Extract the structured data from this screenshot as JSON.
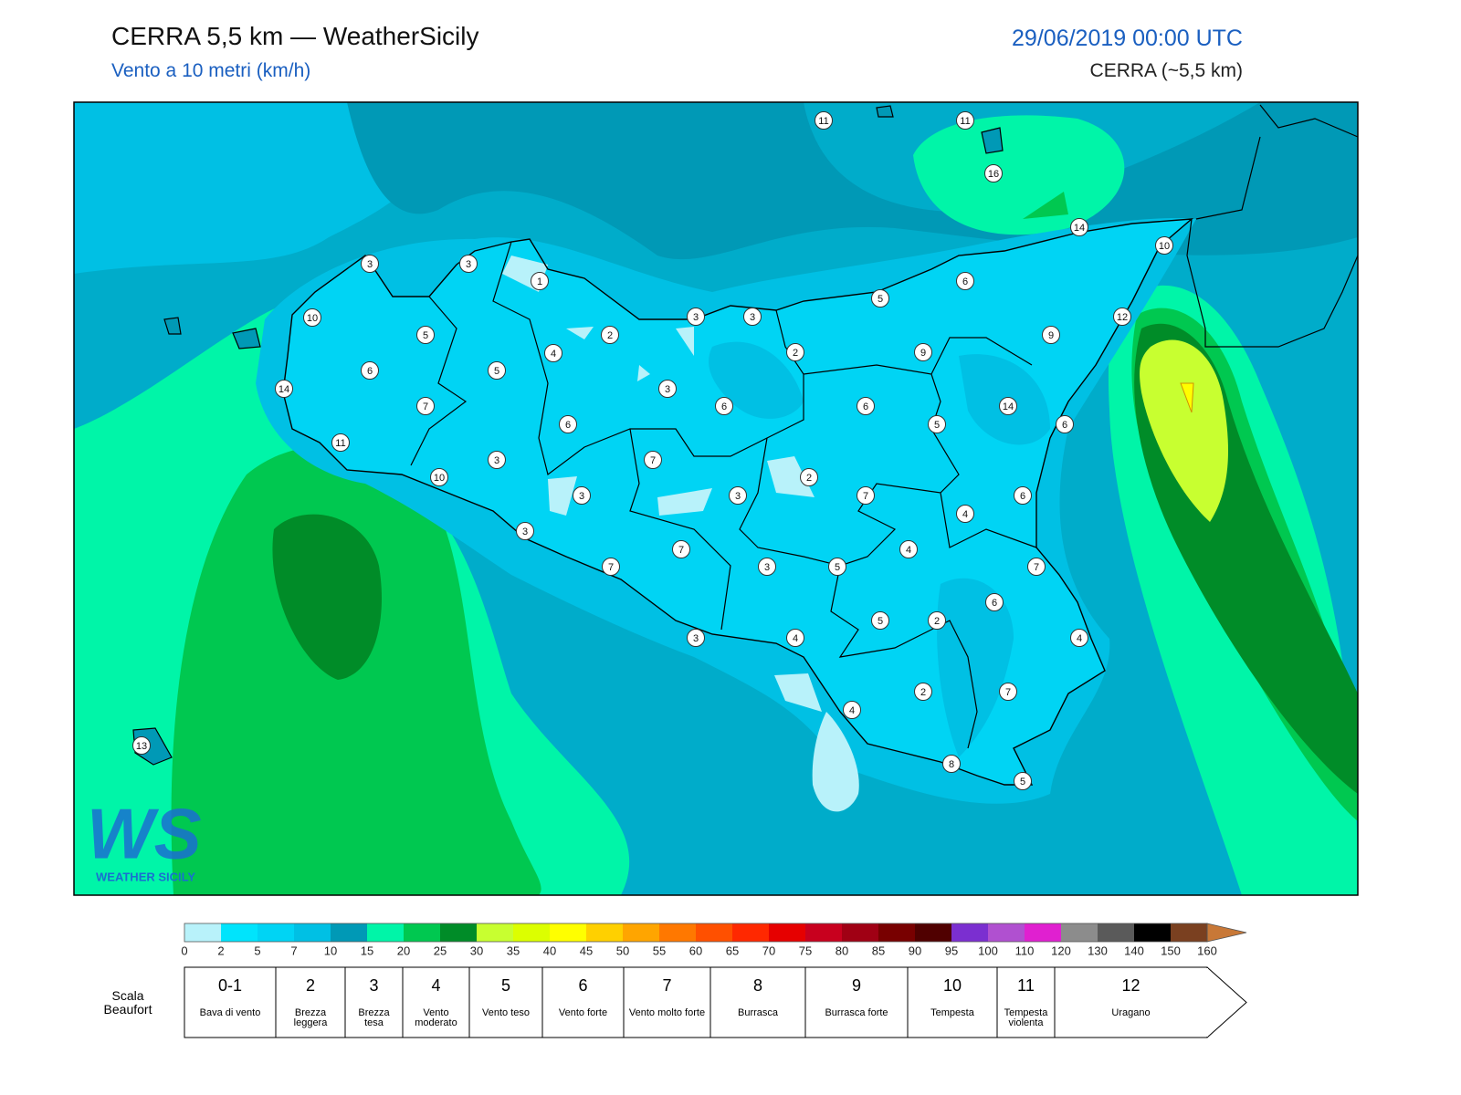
{
  "header": {
    "title": "CERRA 5,5 km — WeatherSicily",
    "subtitle": "Vento a 10 metri (km/h)",
    "date": "29/06/2019 00:00 UTC",
    "model": "CERRA (~5,5 km)"
  },
  "stations": [
    11,
    11,
    16,
    14,
    10,
    3,
    3,
    1,
    6,
    5,
    10,
    3,
    3,
    12,
    5,
    2,
    2,
    9,
    9,
    4,
    6,
    5,
    14,
    3,
    7,
    6,
    6,
    14,
    6,
    5,
    6,
    11,
    7,
    3,
    10,
    2,
    3,
    3,
    7,
    6,
    4,
    3,
    7,
    4,
    7,
    3,
    5,
    7,
    6,
    5,
    2,
    3,
    4,
    4,
    2,
    7,
    4,
    8,
    5,
    13
  ],
  "logo": {
    "mark": "WS",
    "text": "WEATHER SICILY"
  },
  "colorbar": {
    "ticks": [
      0,
      2,
      5,
      7,
      10,
      15,
      20,
      25,
      30,
      35,
      40,
      45,
      50,
      55,
      60,
      65,
      70,
      75,
      80,
      85,
      90,
      95,
      100,
      110,
      120,
      130,
      140,
      150,
      160
    ],
    "colors": [
      "#b8f2fa",
      "#00e4fc",
      "#00d4f4",
      "#00c0e4",
      "#0099b6",
      "#00f5a8",
      "#00c850",
      "#008c28",
      "#c8ff30",
      "#dcff00",
      "#ffff00",
      "#ffd000",
      "#ffa500",
      "#ff7800",
      "#ff5000",
      "#ff2800",
      "#e60000",
      "#c8001e",
      "#a00014",
      "#780000",
      "#500000",
      "#7b2fd0",
      "#b050d0",
      "#e020d0",
      "#8c8c8c",
      "#5a5a5a",
      "#000000",
      "#7a4020",
      "#c87837"
    ]
  },
  "beaufort": {
    "title": "Scala Beaufort",
    "levels": [
      {
        "force": "0-1",
        "name": "Bava di vento"
      },
      {
        "force": 2,
        "name": "Brezza leggera"
      },
      {
        "force": 3,
        "name": "Brezza tesa"
      },
      {
        "force": 4,
        "name": "Vento moderato"
      },
      {
        "force": 5,
        "name": "Vento teso"
      },
      {
        "force": 6,
        "name": "Vento forte"
      },
      {
        "force": 7,
        "name": "Vento molto forte"
      },
      {
        "force": 8,
        "name": "Burrasca"
      },
      {
        "force": 9,
        "name": "Burrasca forte"
      },
      {
        "force": 10,
        "name": "Tempesta"
      },
      {
        "force": 11,
        "name": "Tempesta violenta"
      },
      {
        "force": 12,
        "name": "Uragano"
      }
    ]
  }
}
